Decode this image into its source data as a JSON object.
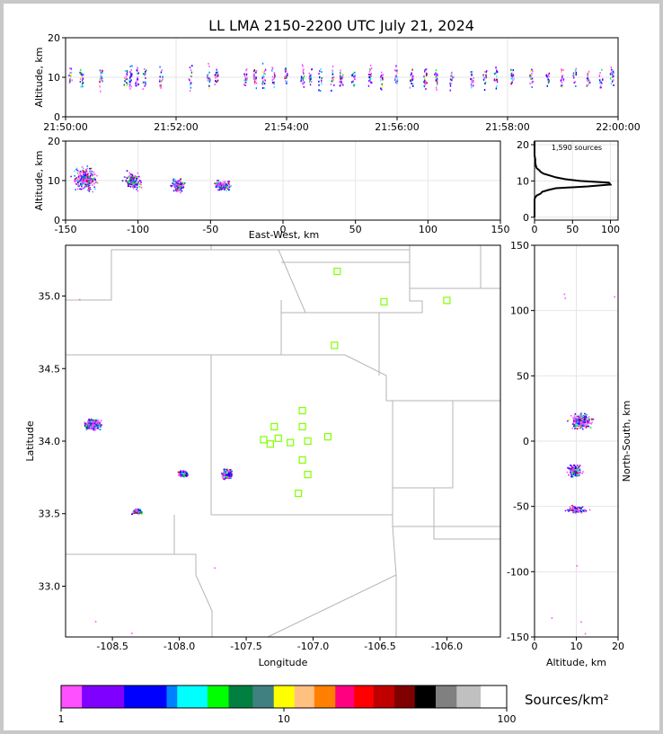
{
  "chart_data": [
    {
      "id": "time-height",
      "type": "scatter",
      "title": "LL LMA 2150-2200 UTC July 21, 2024",
      "xlabel": "",
      "ylabel": "Altitude, km",
      "xlim": [
        "21:50:00",
        "22:00:00"
      ],
      "ylim": [
        0,
        20
      ],
      "xticks": [
        "21:50:00",
        "21:52:00",
        "21:54:00",
        "21:56:00",
        "21:58:00",
        "22:00:00"
      ],
      "yticks": [
        0,
        10,
        20
      ],
      "source_bands_minutes": [
        0.08,
        0.28,
        0.63,
        1.08,
        1.17,
        1.28,
        1.42,
        1.72,
        2.25,
        2.58,
        2.72,
        3.25,
        3.42,
        3.58,
        3.75,
        3.98,
        4.28,
        4.42,
        4.6,
        4.82,
        4.98,
        5.2,
        5.5,
        5.72,
        5.98,
        6.25,
        6.5,
        6.7,
        6.98,
        7.35,
        7.58,
        7.78,
        8.08,
        8.42,
        8.72,
        8.98,
        9.2,
        9.45,
        9.68,
        9.88
      ],
      "altitude_range_km": [
        4,
        16
      ]
    },
    {
      "id": "ew-height",
      "type": "scatter",
      "xlabel": "East-West, km",
      "ylabel": "Altitude, km",
      "xlim": [
        -150,
        150
      ],
      "ylim": [
        0,
        20
      ],
      "xticks": [
        -150,
        -100,
        -50,
        0,
        50,
        100,
        150
      ],
      "yticks": [
        0,
        10,
        20
      ],
      "clusters": [
        {
          "ew_km": -137,
          "alt_km": 10.5
        },
        {
          "ew_km": -104,
          "alt_km": 10
        },
        {
          "ew_km": -73,
          "alt_km": 9
        },
        {
          "ew_km": -42,
          "alt_km": 8.8
        }
      ]
    },
    {
      "id": "altitude-histogram",
      "type": "line",
      "annotation": "1,590 sources",
      "xlim": [
        0,
        110
      ],
      "ylim": [
        0,
        21
      ],
      "xticks": [
        0,
        50,
        100
      ],
      "yticks": [
        0,
        10,
        20
      ],
      "altitude_km": [
        0,
        5,
        5.5,
        6,
        6.5,
        7,
        7.5,
        8,
        8.5,
        9,
        9.5,
        10,
        10.5,
        11,
        11.5,
        12,
        12.5,
        13,
        13.5,
        14,
        15,
        16,
        17,
        21
      ],
      "count": [
        0,
        0,
        1,
        3,
        8,
        10,
        18,
        28,
        70,
        100,
        98,
        60,
        40,
        28,
        20,
        12,
        8,
        6,
        3,
        2,
        1,
        1,
        0,
        0
      ]
    },
    {
      "id": "plan-view",
      "type": "scatter",
      "xlabel": "Longitude",
      "ylabel": "Latitude",
      "xlim": [
        -108.85,
        -105.6
      ],
      "ylim": [
        32.65,
        35.35
      ],
      "xticks": [
        -108.5,
        -108.0,
        -107.5,
        -107.0,
        -106.5,
        -106.0
      ],
      "yticks": [
        33.0,
        33.5,
        34.0,
        34.5,
        35.0
      ],
      "clusters": [
        {
          "lon": -108.65,
          "lat": 34.12
        },
        {
          "lon": -107.98,
          "lat": 33.78
        },
        {
          "lon": -107.65,
          "lat": 33.78
        },
        {
          "lon": -108.32,
          "lat": 33.52
        }
      ],
      "stations": [
        {
          "lon": -106.82,
          "lat": 35.17
        },
        {
          "lon": -106.47,
          "lat": 34.96
        },
        {
          "lon": -106.0,
          "lat": 34.97
        },
        {
          "lon": -106.84,
          "lat": 34.66
        },
        {
          "lon": -107.08,
          "lat": 34.21
        },
        {
          "lon": -107.29,
          "lat": 34.1
        },
        {
          "lon": -107.08,
          "lat": 34.1
        },
        {
          "lon": -107.37,
          "lat": 34.01
        },
        {
          "lon": -107.32,
          "lat": 33.98
        },
        {
          "lon": -107.26,
          "lat": 34.02
        },
        {
          "lon": -107.17,
          "lat": 33.99
        },
        {
          "lon": -107.04,
          "lat": 34.0
        },
        {
          "lon": -106.89,
          "lat": 34.03
        },
        {
          "lon": -107.08,
          "lat": 33.87
        },
        {
          "lon": -107.04,
          "lat": 33.77
        },
        {
          "lon": -107.11,
          "lat": 33.64
        }
      ]
    },
    {
      "id": "ns-height",
      "type": "scatter",
      "xlabel": "Altitude, km",
      "ylabel": "North-South, km",
      "xlim": [
        0,
        20
      ],
      "ylim": [
        -150,
        150
      ],
      "xticks": [
        0,
        10,
        20
      ],
      "yticks": [
        -150,
        -100,
        -50,
        0,
        50,
        100,
        150
      ],
      "clusters": [
        {
          "alt_km": 11,
          "ns_km": 16
        },
        {
          "alt_km": 9.5,
          "ns_km": -22
        },
        {
          "alt_km": 10,
          "ns_km": -52
        }
      ]
    }
  ],
  "colorbar": {
    "label": "Sources/km²",
    "ticks": [
      "1",
      "10",
      "100"
    ],
    "colors": [
      "#ff50ff",
      "#8000ff",
      "#0000ff",
      "#0080ff",
      "#00ffff",
      "#00ff00",
      "#008040",
      "#408080",
      "#ffff00",
      "#ffc080",
      "#ff8000",
      "#ff0080",
      "#ff0000",
      "#c00000",
      "#800000",
      "#000000",
      "#808080",
      "#c0c0c0",
      "#ffffff"
    ]
  },
  "colors": {
    "border": "#c8c8c8",
    "station": "#80ff00",
    "map_lines": "#b4b4b4"
  }
}
